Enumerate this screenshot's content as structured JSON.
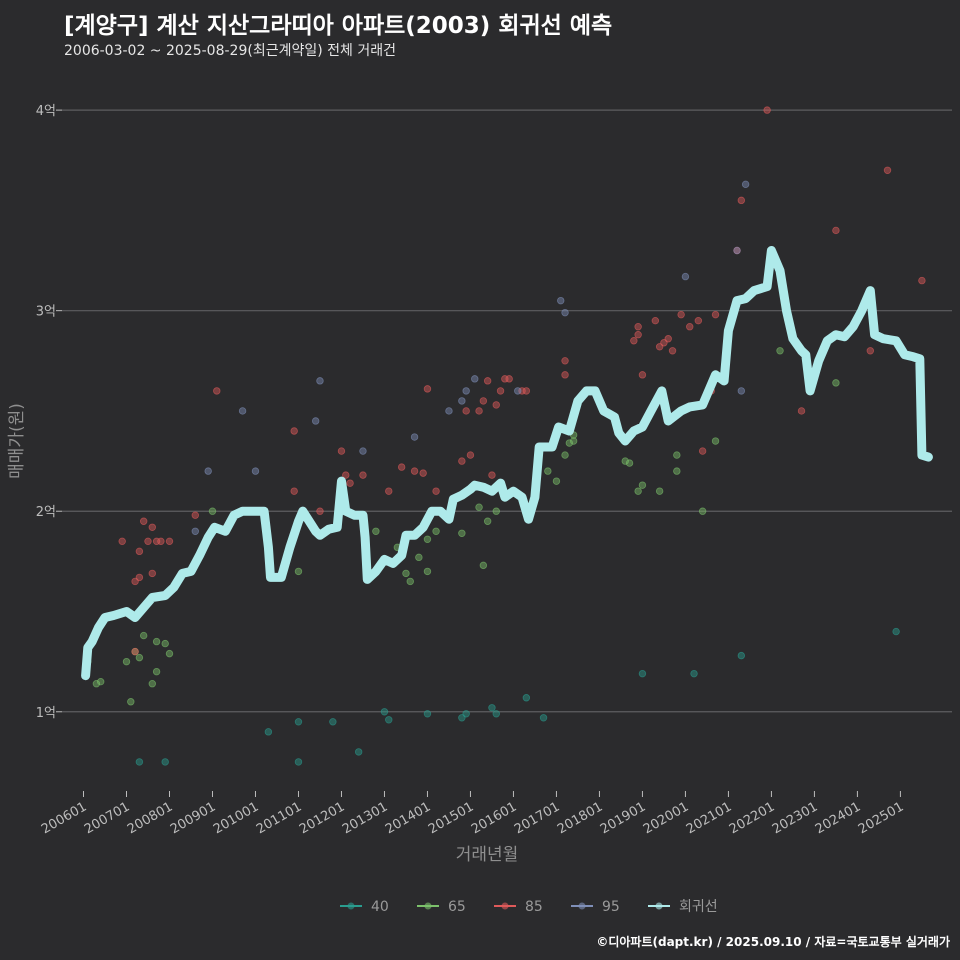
{
  "title": "[계양구] 계산 지산그라띠아 아파트(2003) 회귀선 예측",
  "subtitle": "2006-03-02 ~ 2025-08-29(최근계약일) 전체 거래건",
  "caption": "©디아파트(dapt.kr) / 2025.09.10 / 자료=국토교통부 실거래가",
  "chart_data": {
    "type": "scatter",
    "xlabel": "거래년월",
    "ylabel": "매매가(원)",
    "x_ticks": [
      "200601",
      "200701",
      "200801",
      "200901",
      "201001",
      "201101",
      "201201",
      "201301",
      "201401",
      "201501",
      "201601",
      "201701",
      "201801",
      "201901",
      "202001",
      "202101",
      "202201",
      "202301",
      "202401",
      "202501"
    ],
    "y_ticks": [
      {
        "value": 1,
        "label": "1억"
      },
      {
        "value": 2,
        "label": "2억"
      },
      {
        "value": 3,
        "label": "3억"
      },
      {
        "value": 4,
        "label": "4억"
      }
    ],
    "x_range": [
      2005.5,
      2026.2
    ],
    "y_range": [
      0.6,
      4.2
    ],
    "grid": true,
    "legend_position": "bottom",
    "legend": [
      {
        "name": "40",
        "color": "#2a9d8f"
      },
      {
        "name": "65",
        "color": "#7cc16b"
      },
      {
        "name": "85",
        "color": "#e05a5a"
      },
      {
        "name": "95",
        "color": "#7f8fb8"
      },
      {
        "name": "회귀선",
        "color": "#aeeaea"
      }
    ],
    "series": [
      {
        "name": "40",
        "color": "#2a9d8f",
        "points": [
          [
            2007.3,
            0.75
          ],
          [
            2007.9,
            0.75
          ],
          [
            2010.3,
            0.9
          ],
          [
            2011.0,
            0.95
          ],
          [
            2011.0,
            0.75
          ],
          [
            2011.8,
            0.95
          ],
          [
            2012.4,
            0.8
          ],
          [
            2013.0,
            1.0
          ],
          [
            2013.1,
            0.96
          ],
          [
            2014.0,
            0.99
          ],
          [
            2014.8,
            0.97
          ],
          [
            2014.9,
            0.99
          ],
          [
            2015.5,
            1.02
          ],
          [
            2015.6,
            0.99
          ],
          [
            2016.3,
            1.07
          ],
          [
            2016.7,
            0.97
          ],
          [
            2019.0,
            1.19
          ],
          [
            2020.2,
            1.19
          ],
          [
            2021.3,
            1.28
          ],
          [
            2024.9,
            1.4
          ]
        ]
      },
      {
        "name": "65",
        "color": "#7cc16b",
        "points": [
          [
            2006.1,
            1.25
          ],
          [
            2006.3,
            1.14
          ],
          [
            2006.4,
            1.15
          ],
          [
            2007.0,
            1.25
          ],
          [
            2007.1,
            1.05
          ],
          [
            2007.2,
            1.3
          ],
          [
            2007.3,
            1.27
          ],
          [
            2007.4,
            1.38
          ],
          [
            2007.6,
            1.14
          ],
          [
            2007.7,
            1.2
          ],
          [
            2007.7,
            1.35
          ],
          [
            2007.9,
            1.34
          ],
          [
            2008.0,
            1.29
          ],
          [
            2009.0,
            2.0
          ],
          [
            2011.0,
            1.7
          ],
          [
            2012.8,
            1.9
          ],
          [
            2013.3,
            1.82
          ],
          [
            2013.5,
            1.69
          ],
          [
            2013.6,
            1.65
          ],
          [
            2013.8,
            1.77
          ],
          [
            2014.0,
            1.86
          ],
          [
            2014.0,
            1.7
          ],
          [
            2014.2,
            1.9
          ],
          [
            2014.8,
            1.89
          ],
          [
            2015.2,
            2.02
          ],
          [
            2015.3,
            1.73
          ],
          [
            2015.4,
            1.95
          ],
          [
            2015.6,
            2.0
          ],
          [
            2016.8,
            2.2
          ],
          [
            2017.0,
            2.15
          ],
          [
            2017.2,
            2.28
          ],
          [
            2017.3,
            2.34
          ],
          [
            2017.4,
            2.35
          ],
          [
            2017.4,
            2.38
          ],
          [
            2018.6,
            2.25
          ],
          [
            2018.7,
            2.24
          ],
          [
            2018.9,
            2.1
          ],
          [
            2019.0,
            2.13
          ],
          [
            2019.4,
            2.1
          ],
          [
            2019.8,
            2.2
          ],
          [
            2019.8,
            2.28
          ],
          [
            2020.4,
            2.0
          ],
          [
            2020.7,
            2.35
          ],
          [
            2022.2,
            2.8
          ],
          [
            2023.5,
            2.64
          ]
        ]
      },
      {
        "name": "85",
        "color": "#e05a5a",
        "points": [
          [
            2006.9,
            1.85
          ],
          [
            2007.2,
            1.65
          ],
          [
            2007.3,
            1.8
          ],
          [
            2007.4,
            1.95
          ],
          [
            2007.5,
            1.85
          ],
          [
            2007.6,
            1.92
          ],
          [
            2007.7,
            1.85
          ],
          [
            2007.8,
            1.85
          ],
          [
            2008.0,
            1.85
          ],
          [
            2007.6,
            1.69
          ],
          [
            2007.3,
            1.67
          ],
          [
            2007.2,
            1.3
          ],
          [
            2008.6,
            1.98
          ],
          [
            2009.1,
            2.6
          ],
          [
            2009.9,
            2.0
          ],
          [
            2010.9,
            2.4
          ],
          [
            2010.9,
            2.1
          ],
          [
            2011.5,
            2.0
          ],
          [
            2012.0,
            2.3
          ],
          [
            2012.1,
            2.18
          ],
          [
            2012.2,
            2.14
          ],
          [
            2012.5,
            2.18
          ],
          [
            2013.1,
            2.1
          ],
          [
            2013.4,
            2.22
          ],
          [
            2013.7,
            2.2
          ],
          [
            2013.9,
            2.19
          ],
          [
            2014.0,
            2.61
          ],
          [
            2014.2,
            2.1
          ],
          [
            2014.8,
            2.25
          ],
          [
            2014.9,
            2.5
          ],
          [
            2015.0,
            2.28
          ],
          [
            2015.2,
            2.5
          ],
          [
            2015.3,
            2.55
          ],
          [
            2015.4,
            2.65
          ],
          [
            2015.5,
            2.18
          ],
          [
            2015.6,
            2.53
          ],
          [
            2015.7,
            2.6
          ],
          [
            2015.8,
            2.66
          ],
          [
            2015.9,
            2.66
          ],
          [
            2016.2,
            2.6
          ],
          [
            2016.3,
            2.6
          ],
          [
            2017.2,
            2.68
          ],
          [
            2017.2,
            2.75
          ],
          [
            2018.8,
            2.85
          ],
          [
            2018.9,
            2.88
          ],
          [
            2018.9,
            2.92
          ],
          [
            2019.0,
            2.68
          ],
          [
            2019.3,
            2.95
          ],
          [
            2019.4,
            2.82
          ],
          [
            2019.5,
            2.84
          ],
          [
            2019.6,
            2.86
          ],
          [
            2019.7,
            2.8
          ],
          [
            2019.9,
            2.98
          ],
          [
            2020.1,
            2.92
          ],
          [
            2020.3,
            2.95
          ],
          [
            2020.7,
            2.98
          ],
          [
            2020.6,
            2.6
          ],
          [
            2021.2,
            3.3
          ],
          [
            2021.3,
            3.55
          ],
          [
            2021.9,
            4.0
          ],
          [
            2022.7,
            2.5
          ],
          [
            2023.5,
            3.4
          ],
          [
            2024.7,
            3.7
          ],
          [
            2025.5,
            3.15
          ],
          [
            2024.3,
            2.8
          ],
          [
            2020.4,
            2.3
          ]
        ]
      },
      {
        "name": "95",
        "color": "#7f8fb8",
        "points": [
          [
            2008.6,
            1.9
          ],
          [
            2008.9,
            2.2
          ],
          [
            2009.7,
            2.5
          ],
          [
            2010.0,
            2.2
          ],
          [
            2011.4,
            2.45
          ],
          [
            2011.5,
            2.65
          ],
          [
            2012.5,
            2.3
          ],
          [
            2013.7,
            2.37
          ],
          [
            2014.9,
            2.6
          ],
          [
            2015.1,
            2.66
          ],
          [
            2014.5,
            2.5
          ],
          [
            2014.8,
            2.55
          ],
          [
            2016.1,
            2.6
          ],
          [
            2017.1,
            3.05
          ],
          [
            2017.2,
            2.99
          ],
          [
            2020.0,
            3.17
          ],
          [
            2021.4,
            3.63
          ],
          [
            2021.2,
            3.3
          ],
          [
            2021.3,
            2.6
          ]
        ]
      }
    ],
    "regression_line": [
      [
        2006.05,
        1.18
      ],
      [
        2006.1,
        1.32
      ],
      [
        2006.2,
        1.35
      ],
      [
        2006.35,
        1.42
      ],
      [
        2006.5,
        1.47
      ],
      [
        2006.7,
        1.48
      ],
      [
        2007.0,
        1.5
      ],
      [
        2007.2,
        1.47
      ],
      [
        2007.4,
        1.52
      ],
      [
        2007.6,
        1.57
      ],
      [
        2007.9,
        1.58
      ],
      [
        2008.1,
        1.62
      ],
      [
        2008.3,
        1.69
      ],
      [
        2008.5,
        1.7
      ],
      [
        2008.7,
        1.78
      ],
      [
        2008.9,
        1.87
      ],
      [
        2009.05,
        1.92
      ],
      [
        2009.3,
        1.9
      ],
      [
        2009.5,
        1.98
      ],
      [
        2009.7,
        2.0
      ],
      [
        2010.2,
        2.0
      ],
      [
        2010.3,
        1.82
      ],
      [
        2010.35,
        1.67
      ],
      [
        2010.6,
        1.67
      ],
      [
        2010.8,
        1.82
      ],
      [
        2011.0,
        1.95
      ],
      [
        2011.1,
        2.0
      ],
      [
        2011.4,
        1.9
      ],
      [
        2011.5,
        1.88
      ],
      [
        2011.7,
        1.91
      ],
      [
        2011.9,
        1.92
      ],
      [
        2012.0,
        2.15
      ],
      [
        2012.1,
        2.0
      ],
      [
        2012.3,
        1.98
      ],
      [
        2012.5,
        1.98
      ],
      [
        2012.55,
        1.87
      ],
      [
        2012.6,
        1.66
      ],
      [
        2012.8,
        1.7
      ],
      [
        2013.0,
        1.76
      ],
      [
        2013.2,
        1.74
      ],
      [
        2013.4,
        1.78
      ],
      [
        2013.5,
        1.88
      ],
      [
        2013.7,
        1.88
      ],
      [
        2013.9,
        1.92
      ],
      [
        2014.1,
        2.0
      ],
      [
        2014.3,
        2.0
      ],
      [
        2014.5,
        1.96
      ],
      [
        2014.6,
        2.06
      ],
      [
        2014.8,
        2.08
      ],
      [
        2015.0,
        2.11
      ],
      [
        2015.1,
        2.13
      ],
      [
        2015.3,
        2.12
      ],
      [
        2015.5,
        2.1
      ],
      [
        2015.7,
        2.14
      ],
      [
        2015.8,
        2.07
      ],
      [
        2016.0,
        2.1
      ],
      [
        2016.2,
        2.07
      ],
      [
        2016.35,
        1.96
      ],
      [
        2016.5,
        2.07
      ],
      [
        2016.6,
        2.32
      ],
      [
        2016.9,
        2.32
      ],
      [
        2017.05,
        2.42
      ],
      [
        2017.3,
        2.4
      ],
      [
        2017.5,
        2.55
      ],
      [
        2017.7,
        2.6
      ],
      [
        2017.9,
        2.6
      ],
      [
        2018.1,
        2.5
      ],
      [
        2018.35,
        2.47
      ],
      [
        2018.45,
        2.39
      ],
      [
        2018.6,
        2.35
      ],
      [
        2018.8,
        2.4
      ],
      [
        2019.0,
        2.42
      ],
      [
        2019.2,
        2.5
      ],
      [
        2019.45,
        2.6
      ],
      [
        2019.6,
        2.45
      ],
      [
        2019.9,
        2.5
      ],
      [
        2020.1,
        2.52
      ],
      [
        2020.4,
        2.53
      ],
      [
        2020.5,
        2.58
      ],
      [
        2020.7,
        2.68
      ],
      [
        2020.9,
        2.65
      ],
      [
        2021.0,
        2.9
      ],
      [
        2021.2,
        3.05
      ],
      [
        2021.4,
        3.06
      ],
      [
        2021.6,
        3.1
      ],
      [
        2021.9,
        3.12
      ],
      [
        2022.0,
        3.3
      ],
      [
        2022.1,
        3.25
      ],
      [
        2022.2,
        3.2
      ],
      [
        2022.35,
        3.0
      ],
      [
        2022.5,
        2.86
      ],
      [
        2022.7,
        2.8
      ],
      [
        2022.8,
        2.78
      ],
      [
        2022.9,
        2.6
      ],
      [
        2023.1,
        2.75
      ],
      [
        2023.3,
        2.85
      ],
      [
        2023.5,
        2.88
      ],
      [
        2023.7,
        2.87
      ],
      [
        2023.9,
        2.92
      ],
      [
        2024.1,
        3.0
      ],
      [
        2024.3,
        3.1
      ],
      [
        2024.4,
        2.88
      ],
      [
        2024.6,
        2.86
      ],
      [
        2024.9,
        2.85
      ],
      [
        2025.1,
        2.78
      ],
      [
        2025.3,
        2.77
      ],
      [
        2025.45,
        2.76
      ],
      [
        2025.5,
        2.28
      ],
      [
        2025.65,
        2.27
      ]
    ]
  }
}
